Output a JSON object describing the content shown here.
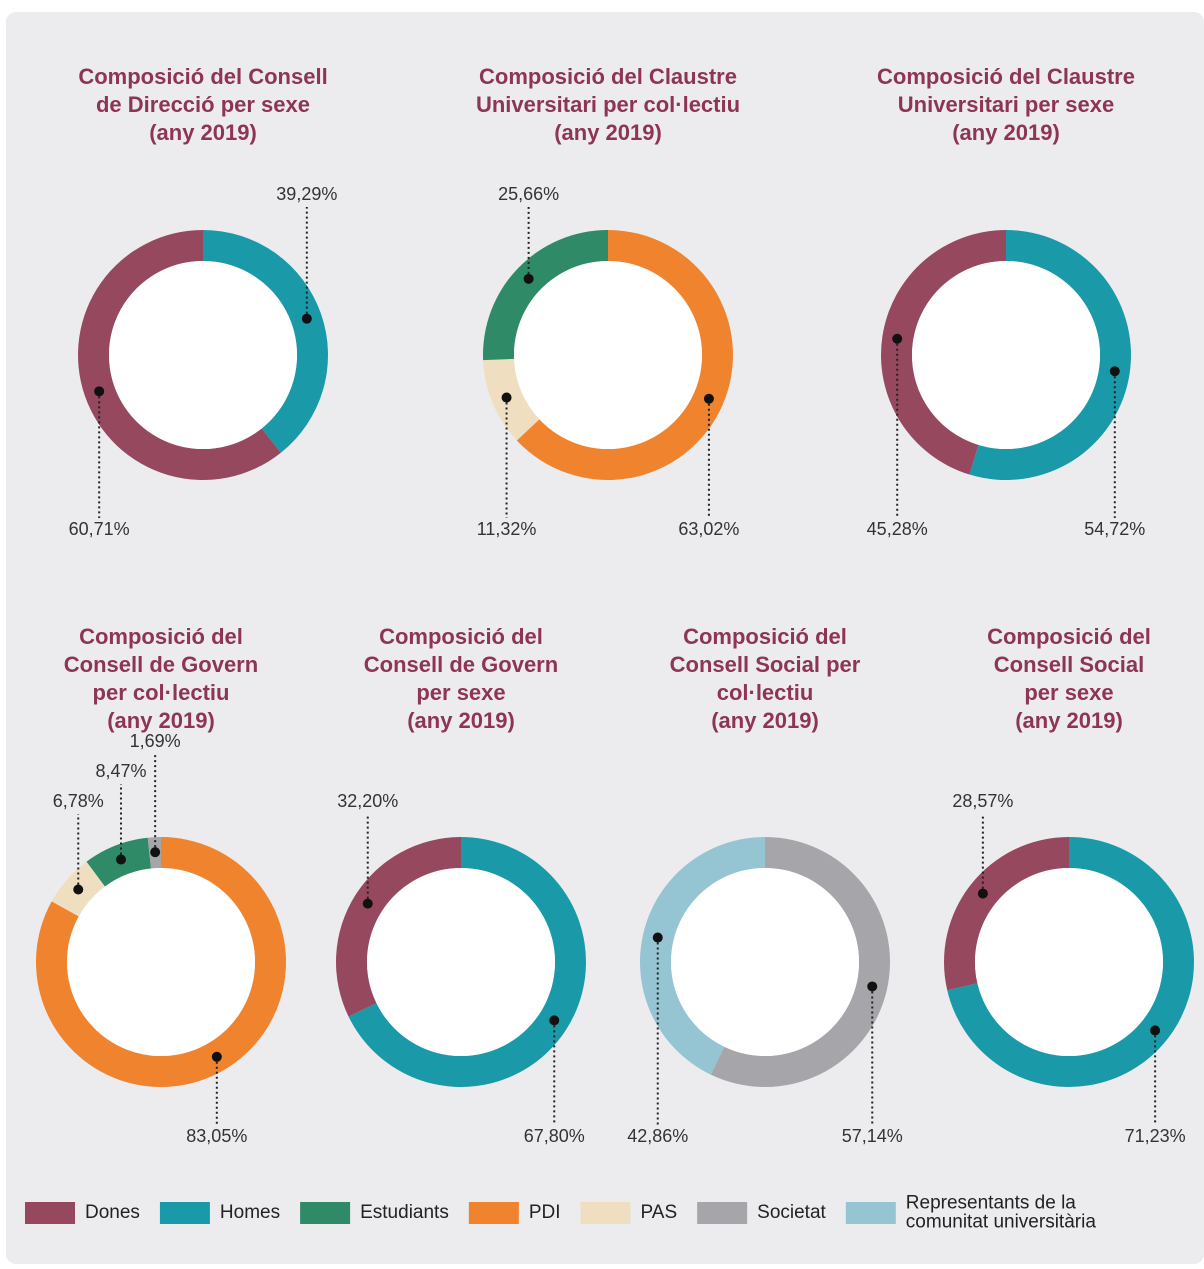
{
  "chart_data": [
    {
      "type": "donut",
      "title": [
        "Composició del Consell",
        "de Direcció per sexe",
        "(any 2019)"
      ],
      "categories": [
        "Homes",
        "Dones"
      ],
      "values": [
        39.29,
        60.71
      ],
      "value_labels": [
        "39,29%",
        "60,71%"
      ],
      "colors": [
        "#1a9aa8",
        "#96485f"
      ]
    },
    {
      "type": "donut",
      "title": [
        "Composició del Claustre",
        "Universitari per col·lectiu",
        "(any 2019)"
      ],
      "categories": [
        "PDI",
        "PAS",
        "Estudiants"
      ],
      "values": [
        63.02,
        11.32,
        25.66
      ],
      "value_labels": [
        "63,02%",
        "11,32%",
        "25,66%"
      ],
      "colors": [
        "#f0832e",
        "#efdfc0",
        "#2f8a67"
      ]
    },
    {
      "type": "donut",
      "title": [
        "Composició del Claustre",
        "Universitari per sexe",
        "(any 2019)"
      ],
      "categories": [
        "Homes",
        "Dones"
      ],
      "values": [
        54.72,
        45.28
      ],
      "value_labels": [
        "54,72%",
        "45,28%"
      ],
      "colors": [
        "#1a9aa8",
        "#96485f"
      ]
    },
    {
      "type": "donut",
      "title": [
        "Composició del",
        "Consell de Govern",
        "per col·lectiu",
        "(any 2019)"
      ],
      "categories": [
        "PDI",
        "PAS",
        "Estudiants",
        "Societat"
      ],
      "values": [
        83.05,
        6.78,
        8.47,
        1.69
      ],
      "value_labels": [
        "83,05%",
        "6,78%",
        "8,47%",
        "1,69%"
      ],
      "colors": [
        "#f0832e",
        "#efdfc0",
        "#2f8a67",
        "#a6a6aa"
      ]
    },
    {
      "type": "donut",
      "title": [
        "Composició del",
        "Consell de Govern",
        "per sexe",
        "(any 2019)"
      ],
      "categories": [
        "Homes",
        "Dones"
      ],
      "values": [
        67.8,
        32.2
      ],
      "value_labels": [
        "67,80%",
        "32,20%"
      ],
      "colors": [
        "#1a9aa8",
        "#96485f"
      ]
    },
    {
      "type": "donut",
      "title": [
        "Composició del",
        "Consell  Social per",
        "col·lectiu",
        "(any 2019)"
      ],
      "categories": [
        "Societat",
        "Representants de la comunitat universitària"
      ],
      "values": [
        57.14,
        42.86
      ],
      "value_labels": [
        "57,14%",
        "42,86%"
      ],
      "colors": [
        "#a6a6aa",
        "#95c4d2"
      ]
    },
    {
      "type": "donut",
      "title": [
        "Composició del",
        "Consell Social",
        "per sexe",
        "(any 2019)"
      ],
      "categories": [
        "Homes",
        "Dones"
      ],
      "values": [
        71.23,
        28.57
      ],
      "value_labels": [
        "71,23%",
        "28,57%"
      ],
      "colors": [
        "#1a9aa8",
        "#96485f"
      ]
    }
  ],
  "legend": {
    "items": [
      {
        "name": [
          "Dones"
        ],
        "color": "#96485f"
      },
      {
        "name": [
          "Homes"
        ],
        "color": "#1a9aa8"
      },
      {
        "name": [
          "Estudiants"
        ],
        "color": "#2f8a67"
      },
      {
        "name": [
          "PDI"
        ],
        "color": "#f0832e"
      },
      {
        "name": [
          "PAS"
        ],
        "color": "#efdfc0"
      },
      {
        "name": [
          "Societat"
        ],
        "color": "#a6a6aa"
      },
      {
        "name": [
          "Representants de la",
          "comunitat universitària"
        ],
        "color": "#95c4d2"
      }
    ]
  }
}
